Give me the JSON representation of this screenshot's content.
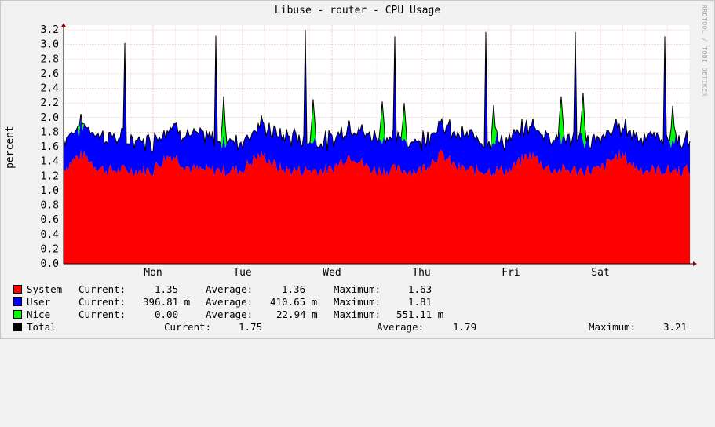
{
  "title": "Libuse - router - CPU Usage",
  "watermark": "RRDTOOL / TOBI OETIKER",
  "chart_data": {
    "type": "area",
    "title": "Libuse - router - CPU Usage",
    "ylabel": "percent",
    "xlabel": "",
    "ylim": [
      0,
      3.3
    ],
    "yticks": [
      "0.0",
      "0.2",
      "0.4",
      "0.6",
      "0.8",
      "1.0",
      "1.2",
      "1.4",
      "1.6",
      "1.8",
      "2.0",
      "2.2",
      "2.4",
      "2.6",
      "2.8",
      "3.0",
      "3.2"
    ],
    "xticks": [
      "Mon",
      "Tue",
      "Wed",
      "Thu",
      "Fri",
      "Sat"
    ],
    "grid": true,
    "stacked": true,
    "series": [
      {
        "name": "System",
        "color": "#ff0000"
      },
      {
        "name": "User",
        "color": "#0000ff"
      },
      {
        "name": "Nice",
        "color": "#00ff00"
      },
      {
        "name": "Total",
        "color": "#000000"
      }
    ],
    "spikes_total": [
      {
        "day": 0.68,
        "value": 3.02
      },
      {
        "day": 1.69,
        "value": 3.12
      },
      {
        "day": 2.69,
        "value": 3.2
      },
      {
        "day": 3.7,
        "value": 3.11
      },
      {
        "day": 4.7,
        "value": 3.17
      },
      {
        "day": 5.7,
        "value": 3.17
      },
      {
        "day": 6.7,
        "value": 3.11
      }
    ],
    "nice_bumps": [
      {
        "day": 0.19,
        "value": 2.05
      },
      {
        "day": 1.78,
        "value": 2.29
      },
      {
        "day": 2.79,
        "value": 2.25
      },
      {
        "day": 3.55,
        "value": 2.22
      },
      {
        "day": 3.79,
        "value": 2.2
      },
      {
        "day": 4.79,
        "value": 2.17
      },
      {
        "day": 5.55,
        "value": 2.29
      },
      {
        "day": 5.79,
        "value": 2.34
      },
      {
        "day": 6.79,
        "value": 2.16
      }
    ],
    "levels": {
      "system_avg": 1.36,
      "user_avg": 0.41,
      "nice_avg": 0.023
    }
  },
  "legend": [
    {
      "name": "System",
      "color": "#ff0000",
      "current_label": "Current:",
      "current": "1.35",
      "average_label": "Average:",
      "average": "1.36",
      "maximum_label": "Maximum:",
      "maximum": "1.63"
    },
    {
      "name": "User",
      "color": "#0000ff",
      "current_label": "Current:",
      "current": "396.81 m",
      "average_label": "Average:",
      "average": "410.65 m",
      "maximum_label": "Maximum:",
      "maximum": "1.81"
    },
    {
      "name": "Nice",
      "color": "#00ff00",
      "current_label": "Current:",
      "current": "0.00",
      "average_label": "Average:",
      "average": "22.94 m",
      "maximum_label": "Maximum:",
      "maximum": "551.11 m"
    },
    {
      "name": "Total",
      "color": "#000000",
      "current_label": "Current:",
      "current": "1.75",
      "average_label": "Average:",
      "average": "1.79",
      "maximum_label": "Maximum:",
      "maximum": "3.21"
    }
  ]
}
